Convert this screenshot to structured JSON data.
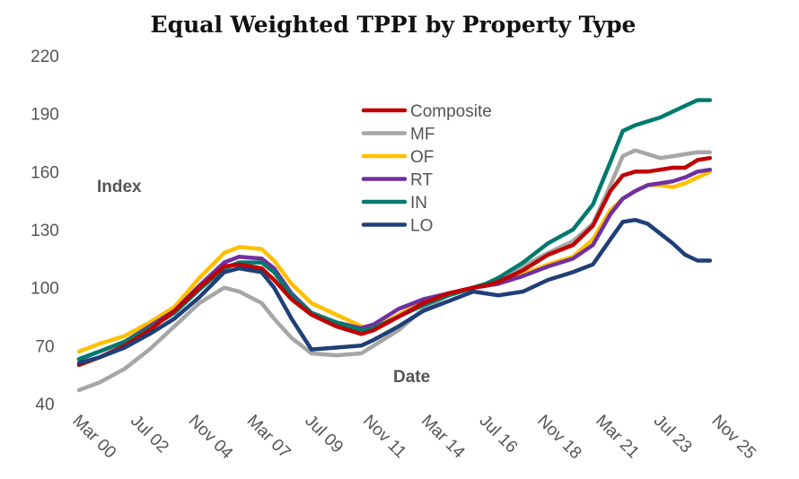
{
  "chart_data": {
    "type": "line",
    "title": "Equal Weighted TPPI by Property Type",
    "ylabel": "Index",
    "xlabel": "Date",
    "ylim": [
      40,
      220
    ],
    "yticks": [
      40,
      70,
      100,
      130,
      160,
      190,
      220
    ],
    "xlim": [
      2000.17,
      2025.83
    ],
    "xticks": [
      {
        "label": "Mar 00",
        "x": 2000.17
      },
      {
        "label": "Jul 02",
        "x": 2002.5
      },
      {
        "label": "Nov 04",
        "x": 2004.83
      },
      {
        "label": "Mar 07",
        "x": 2007.17
      },
      {
        "label": "Jul 09",
        "x": 2009.5
      },
      {
        "label": "Nov 11",
        "x": 2011.83
      },
      {
        "label": "Mar 14",
        "x": 2014.17
      },
      {
        "label": "Jul 16",
        "x": 2016.5
      },
      {
        "label": "Nov 18",
        "x": 2018.83
      },
      {
        "label": "Mar 21",
        "x": 2021.17
      },
      {
        "label": "Jul 23",
        "x": 2023.5
      },
      {
        "label": "Nov 25",
        "x": 2025.83
      }
    ],
    "grid": false,
    "legend_position": "top-center",
    "x": [
      2000.17,
      2001,
      2002,
      2003,
      2004,
      2005,
      2006,
      2006.6,
      2007.5,
      2008,
      2008.7,
      2009.5,
      2010.5,
      2011.5,
      2012,
      2013,
      2014,
      2015,
      2016,
      2016.5,
      2017,
      2018,
      2019,
      2020,
      2020.8,
      2021.5,
      2022,
      2022.5,
      2023,
      2023.5,
      2024,
      2024.5,
      2025,
      2025.5
    ],
    "series": [
      {
        "name": "Composite",
        "color": "#c00000",
        "values": [
          60,
          64,
          70,
          78,
          88,
          100,
          111,
          112,
          110,
          104,
          94,
          86,
          80,
          76,
          78,
          85,
          92,
          97,
          100,
          101,
          103,
          109,
          117,
          122,
          132,
          150,
          158,
          160,
          160,
          161,
          162,
          162,
          166,
          167
        ]
      },
      {
        "name": "MF",
        "color": "#a6a6a6",
        "values": [
          47,
          51,
          58,
          68,
          80,
          92,
          100,
          98,
          92,
          84,
          74,
          66,
          65,
          66,
          70,
          78,
          89,
          96,
          100,
          102,
          105,
          111,
          118,
          124,
          133,
          153,
          168,
          171,
          169,
          167,
          168,
          169,
          170,
          170
        ]
      },
      {
        "name": "OF",
        "color": "#ffc000",
        "values": [
          67,
          71,
          75,
          82,
          90,
          105,
          118,
          121,
          120,
          114,
          102,
          92,
          86,
          80,
          79,
          86,
          93,
          97,
          100,
          101,
          102,
          107,
          112,
          116,
          125,
          140,
          146,
          150,
          153,
          153,
          152,
          154,
          157,
          160
        ]
      },
      {
        "name": "RT",
        "color": "#7030a0",
        "values": [
          63,
          67,
          72,
          80,
          88,
          101,
          113,
          116,
          115,
          110,
          97,
          87,
          82,
          79,
          81,
          89,
          94,
          97,
          100,
          101,
          102,
          106,
          111,
          115,
          122,
          138,
          146,
          150,
          153,
          154,
          155,
          157,
          160,
          161
        ]
      },
      {
        "name": "IN",
        "color": "#007a6e",
        "values": [
          63,
          67,
          72,
          79,
          87,
          99,
          110,
          113,
          113,
          108,
          96,
          87,
          82,
          78,
          79,
          85,
          91,
          96,
          100,
          102,
          105,
          113,
          123,
          130,
          143,
          165,
          181,
          184,
          186,
          188,
          191,
          194,
          197,
          197
        ]
      },
      {
        "name": "LO",
        "color": "#1f3f77",
        "values": [
          61,
          64,
          69,
          76,
          84,
          95,
          108,
          110,
          108,
          100,
          84,
          68,
          69,
          70,
          73,
          80,
          88,
          93,
          98,
          97,
          96,
          98,
          104,
          108,
          112,
          125,
          134,
          135,
          133,
          128,
          123,
          117,
          114,
          114
        ]
      }
    ]
  }
}
